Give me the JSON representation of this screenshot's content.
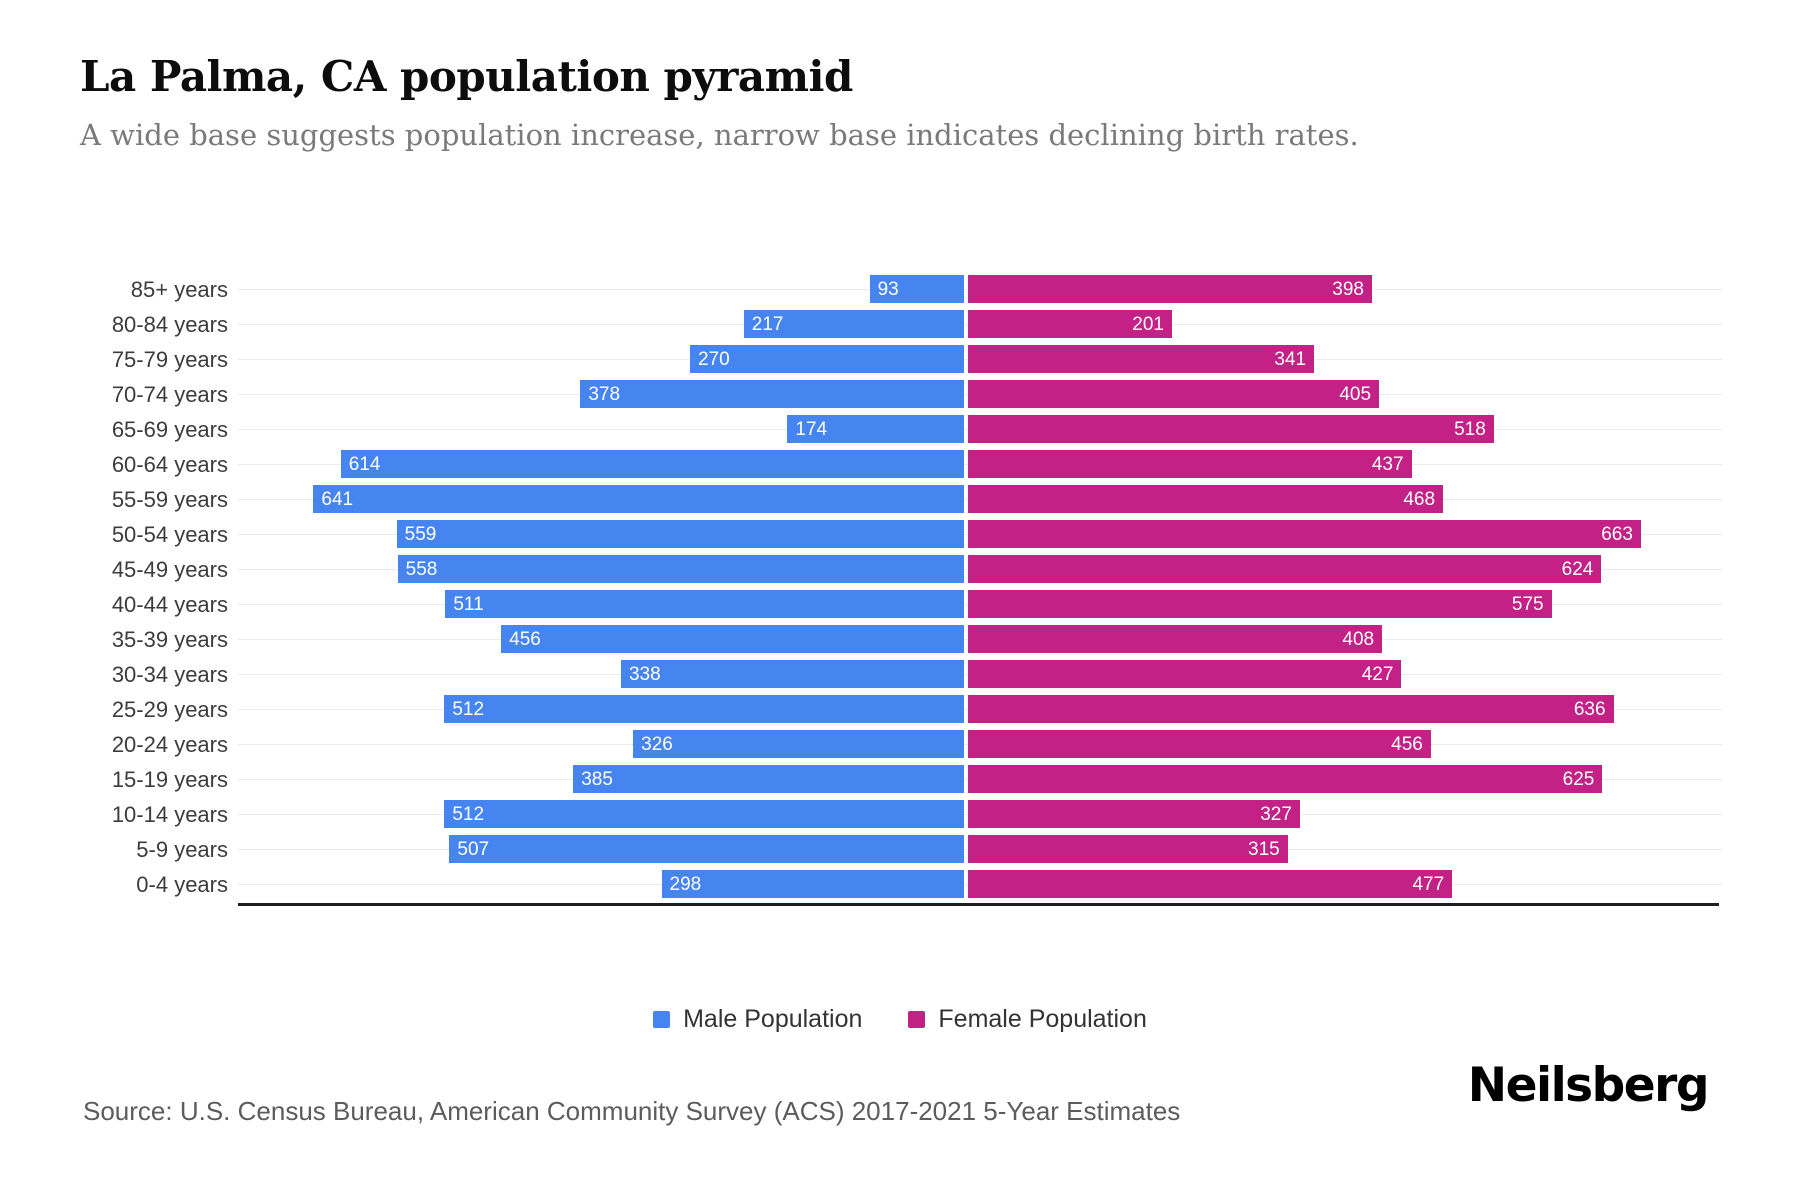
{
  "header": {
    "title": "La Palma, CA population pyramid",
    "subtitle": "A wide base suggests population increase, narrow base indicates declining birth rates."
  },
  "colors": {
    "male": "#4685F0",
    "female": "#C32186",
    "gridline": "#ebebeb",
    "axis": "#1f1f1f"
  },
  "chart_data": {
    "type": "bar",
    "variant": "population-pyramid",
    "orientation": "horizontal",
    "grid": true,
    "legend_position": "bottom",
    "value_labels": "inside-ends",
    "categories": [
      "85+ years",
      "80-84 years",
      "75-79 years",
      "70-74 years",
      "65-69 years",
      "60-64 years",
      "55-59 years",
      "50-54 years",
      "45-49 years",
      "40-44 years",
      "35-39 years",
      "30-34 years",
      "25-29 years",
      "20-24 years",
      "15-19 years",
      "10-14 years",
      "5-9 years",
      "0-4 years"
    ],
    "series": [
      {
        "name": "Male Population",
        "color": "#4685F0",
        "values": [
          93,
          217,
          270,
          378,
          174,
          614,
          641,
          559,
          558,
          511,
          456,
          338,
          512,
          326,
          385,
          512,
          507,
          298
        ]
      },
      {
        "name": "Female Population",
        "color": "#C32186",
        "values": [
          398,
          201,
          341,
          405,
          518,
          437,
          468,
          663,
          624,
          575,
          408,
          427,
          636,
          456,
          625,
          327,
          315,
          477
        ]
      }
    ]
  },
  "footer": {
    "source": "Source: U.S. Census Bureau, American Community Survey (ACS) 2017-2021 5-Year Estimates",
    "logo": "Neilsberg"
  }
}
